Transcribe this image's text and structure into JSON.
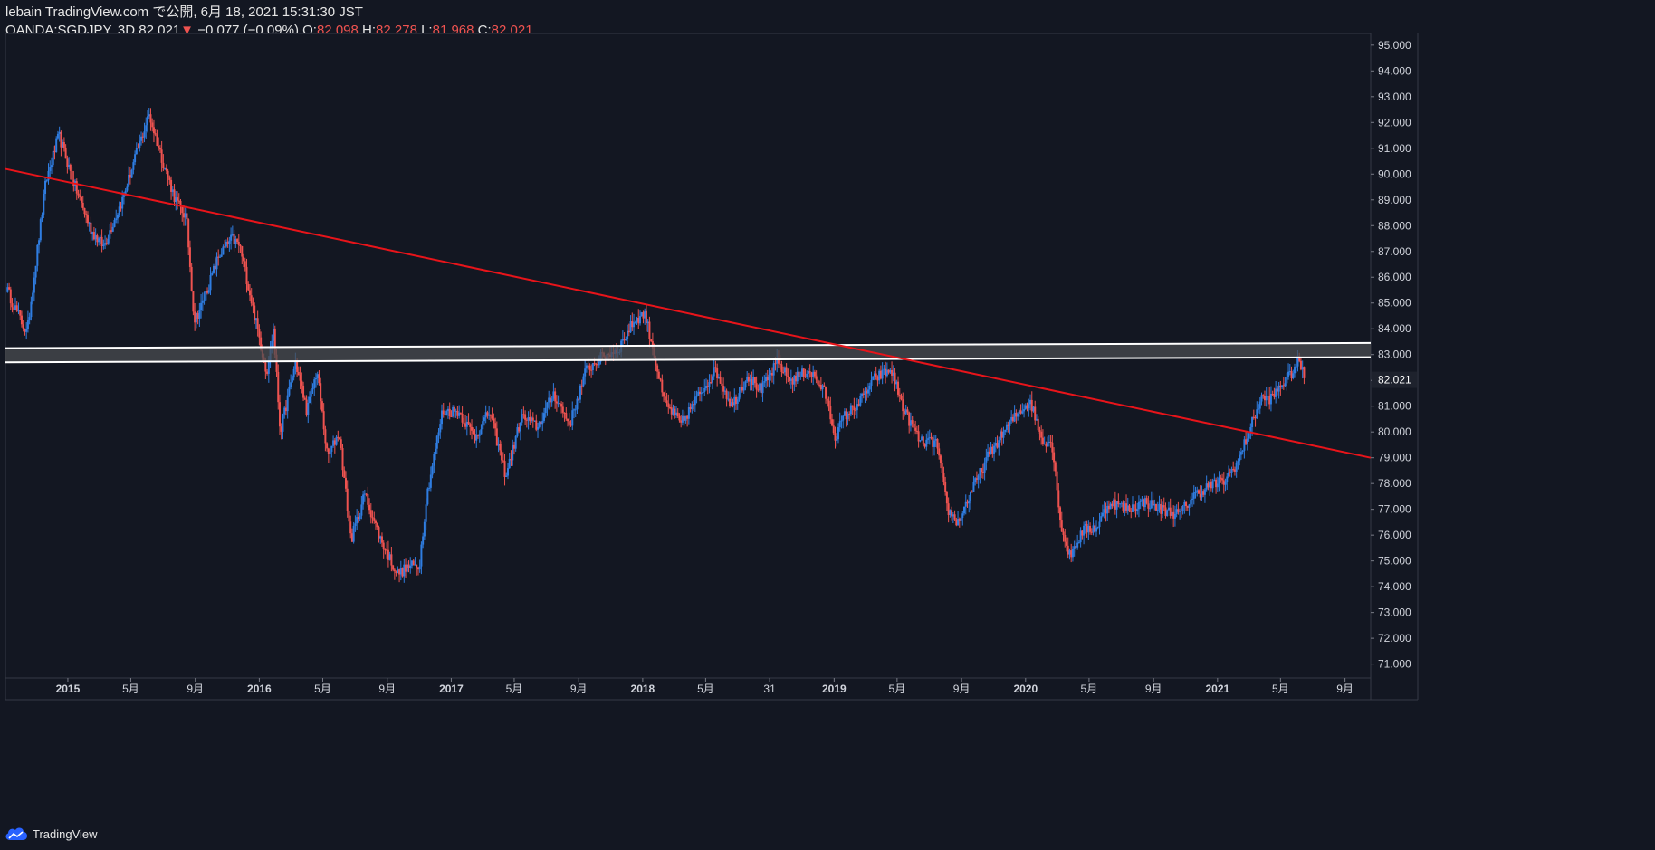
{
  "header": {
    "published": "lebain TradingView.com で公開, 6月 18, 2021 15:31:30 JST",
    "symbol": "OANDA:SGDJPY, 3D",
    "last": "82.021",
    "change_arrow": "▼",
    "change": "−0.077 (−0.09%)",
    "o_label": "O:",
    "o_value": "82.098",
    "h_label": "H:",
    "h_value": "82.278",
    "l_label": "L:",
    "l_value": "81.968",
    "c_label": "C:",
    "c_value": "82.021"
  },
  "footer": {
    "brand": "TradingView",
    "icon": "tradingview-cloud-icon"
  },
  "colors": {
    "background": "#131722",
    "up": "#2f7de1",
    "down": "#ef5350",
    "trendline": "#e8141a",
    "zone_border": "#ffffff",
    "zone_fill": "#4a4c50",
    "price_label_bg": "#1e222d"
  },
  "chart_data": {
    "type": "candlestick",
    "x_axis_labels": [
      "2015",
      "5月",
      "9月",
      "2016",
      "5月",
      "9月",
      "2017",
      "5月",
      "9月",
      "2018",
      "5月",
      "31",
      "2019",
      "5月",
      "9月",
      "2020",
      "5月",
      "9月",
      "2021",
      "5月",
      "9月"
    ],
    "x_axis_bold": [
      "2015",
      "2016",
      "2017",
      "2018",
      "2019",
      "2020",
      "2021"
    ],
    "x_label_dates": [
      "2015-01-01",
      "2015-05-01",
      "2015-09-01",
      "2016-01-01",
      "2016-05-01",
      "2016-09-01",
      "2017-01-01",
      "2017-05-01",
      "2017-09-01",
      "2018-01-01",
      "2018-05-01",
      "2018-08-31",
      "2019-01-01",
      "2019-05-01",
      "2019-09-01",
      "2020-01-01",
      "2020-05-01",
      "2020-09-01",
      "2021-01-01",
      "2021-05-01",
      "2021-09-01"
    ],
    "x_range": [
      "2014-09-04",
      "2021-10-20"
    ],
    "y_axis_labels": [
      "95.000",
      "94.000",
      "93.000",
      "92.000",
      "91.000",
      "90.000",
      "89.000",
      "88.000",
      "87.000",
      "86.000",
      "85.000",
      "84.000",
      "83.000",
      "82.000",
      "81.000",
      "80.000",
      "79.000",
      "78.000",
      "77.000",
      "76.000",
      "75.000",
      "74.000",
      "73.000",
      "72.000",
      "71.000"
    ],
    "ylim": [
      70.46,
      95.45
    ],
    "last_price": 82.021,
    "close_path": [
      [
        "2014-09-05",
        85.6
      ],
      [
        "2014-10-15",
        83.8
      ],
      [
        "2014-11-20",
        89.7
      ],
      [
        "2014-12-15",
        91.5
      ],
      [
        "2015-01-15",
        89.5
      ],
      [
        "2015-02-15",
        87.8
      ],
      [
        "2015-03-10",
        87.2
      ],
      [
        "2015-04-15",
        89.0
      ],
      [
        "2015-05-15",
        91.0
      ],
      [
        "2015-06-05",
        92.3
      ],
      [
        "2015-07-01",
        90.5
      ],
      [
        "2015-07-25",
        89.0
      ],
      [
        "2015-08-15",
        88.3
      ],
      [
        "2015-08-30",
        84.3
      ],
      [
        "2015-09-15",
        85.0
      ],
      [
        "2015-10-15",
        86.8
      ],
      [
        "2015-11-10",
        87.5
      ],
      [
        "2015-11-25",
        87.2
      ],
      [
        "2015-12-20",
        84.8
      ],
      [
        "2016-01-15",
        82.3
      ],
      [
        "2016-01-28",
        84.0
      ],
      [
        "2016-02-10",
        80.0
      ],
      [
        "2016-03-10",
        82.7
      ],
      [
        "2016-04-01",
        80.8
      ],
      [
        "2016-04-20",
        82.4
      ],
      [
        "2016-05-10",
        79.0
      ],
      [
        "2016-06-01",
        80.0
      ],
      [
        "2016-06-24",
        75.8
      ],
      [
        "2016-07-20",
        77.6
      ],
      [
        "2016-08-20",
        75.8
      ],
      [
        "2016-09-20",
        74.5
      ],
      [
        "2016-10-15",
        74.8
      ],
      [
        "2016-11-01",
        74.8
      ],
      [
        "2016-11-15",
        77.5
      ],
      [
        "2016-12-15",
        80.8
      ],
      [
        "2017-01-15",
        80.8
      ],
      [
        "2017-02-15",
        79.8
      ],
      [
        "2017-03-15",
        80.8
      ],
      [
        "2017-04-15",
        78.3
      ],
      [
        "2017-05-15",
        80.6
      ],
      [
        "2017-06-15",
        80.2
      ],
      [
        "2017-07-15",
        81.5
      ],
      [
        "2017-08-15",
        80.3
      ],
      [
        "2017-09-15",
        82.4
      ],
      [
        "2017-10-15",
        82.9
      ],
      [
        "2017-11-15",
        83.2
      ],
      [
        "2017-12-15",
        84.3
      ],
      [
        "2018-01-05",
        84.6
      ],
      [
        "2018-01-20",
        83.3
      ],
      [
        "2018-02-10",
        81.2
      ],
      [
        "2018-03-15",
        80.3
      ],
      [
        "2018-04-20",
        81.5
      ],
      [
        "2018-05-20",
        82.4
      ],
      [
        "2018-06-20",
        81.0
      ],
      [
        "2018-07-20",
        82.2
      ],
      [
        "2018-08-15",
        81.6
      ],
      [
        "2018-09-15",
        82.7
      ],
      [
        "2018-10-10",
        82.0
      ],
      [
        "2018-11-15",
        82.4
      ],
      [
        "2018-12-15",
        81.5
      ],
      [
        "2019-01-03",
        79.8
      ],
      [
        "2019-01-20",
        80.6
      ],
      [
        "2019-02-20",
        81.2
      ],
      [
        "2019-03-20",
        82.1
      ],
      [
        "2019-04-20",
        82.4
      ],
      [
        "2019-05-15",
        80.8
      ],
      [
        "2019-06-15",
        79.6
      ],
      [
        "2019-07-15",
        79.6
      ],
      [
        "2019-08-05",
        77.0
      ],
      [
        "2019-08-25",
        76.5
      ],
      [
        "2019-09-20",
        77.7
      ],
      [
        "2019-10-20",
        79.0
      ],
      [
        "2019-11-20",
        80.0
      ],
      [
        "2019-12-20",
        80.8
      ],
      [
        "2020-01-10",
        81.2
      ],
      [
        "2020-02-01",
        79.7
      ],
      [
        "2020-02-20",
        79.6
      ],
      [
        "2020-03-10",
        76.2
      ],
      [
        "2020-03-25",
        75.2
      ],
      [
        "2020-04-20",
        76.2
      ],
      [
        "2020-05-15",
        76.3
      ],
      [
        "2020-06-10",
        77.3
      ],
      [
        "2020-07-15",
        77.0
      ],
      [
        "2020-08-15",
        77.3
      ],
      [
        "2020-09-15",
        77.0
      ],
      [
        "2020-10-20",
        76.8
      ],
      [
        "2020-11-15",
        77.5
      ],
      [
        "2020-12-15",
        77.9
      ],
      [
        "2021-01-15",
        78.1
      ],
      [
        "2021-02-10",
        78.9
      ],
      [
        "2021-03-05",
        80.2
      ],
      [
        "2021-03-25",
        81.3
      ],
      [
        "2021-04-15",
        81.3
      ],
      [
        "2021-05-01",
        81.8
      ],
      [
        "2021-05-20",
        82.2
      ],
      [
        "2021-06-05",
        82.8
      ],
      [
        "2021-06-17",
        82.02
      ]
    ],
    "drawings": {
      "trendline": {
        "from": [
          "2014-09-04",
          90.2
        ],
        "to": [
          "2021-10-20",
          79.0
        ]
      },
      "resistance_zone": {
        "upper": {
          "from": [
            "2014-09-04",
            83.25
          ],
          "to": [
            "2021-10-20",
            83.45
          ]
        },
        "lower": {
          "from": [
            "2014-09-04",
            82.7
          ],
          "to": [
            "2021-10-20",
            82.9
          ]
        }
      }
    }
  }
}
